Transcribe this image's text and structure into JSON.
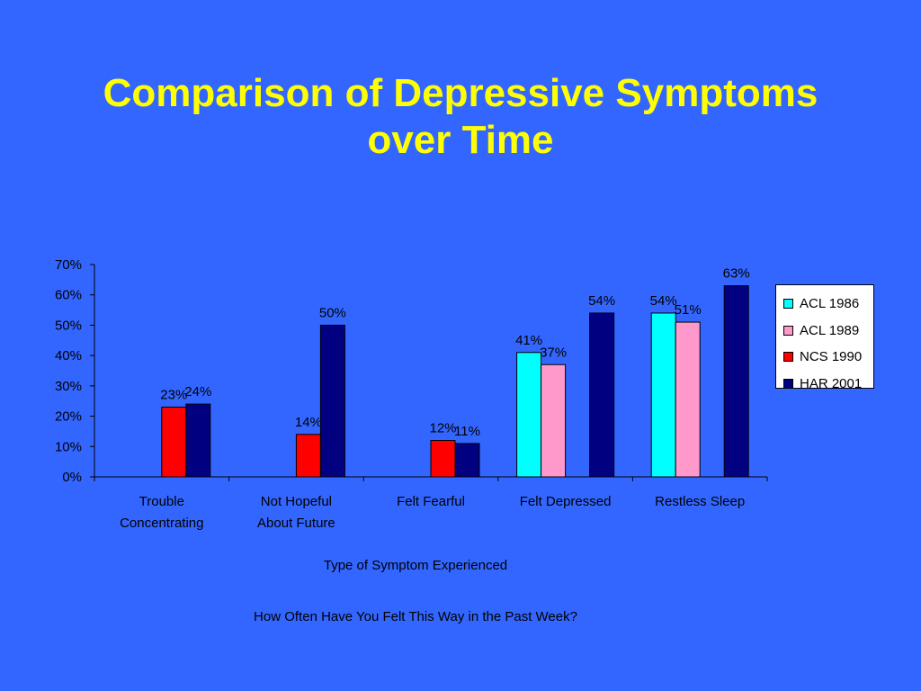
{
  "slide": {
    "title_line1": "Comparison of Depressive Symptoms",
    "title_line2": "over Time"
  },
  "chart_data": {
    "type": "bar",
    "categories": [
      [
        "Trouble",
        "Concentrating"
      ],
      [
        "Not Hopeful",
        "About Future"
      ],
      [
        "Felt Fearful"
      ],
      [
        "Felt Depressed"
      ],
      [
        "Restless Sleep"
      ]
    ],
    "series": [
      {
        "name": "ACL 1986",
        "color": "#00ffff",
        "values": [
          null,
          null,
          null,
          41,
          54
        ]
      },
      {
        "name": "ACL 1989",
        "color": "#ff99cc",
        "values": [
          null,
          null,
          null,
          37,
          51
        ]
      },
      {
        "name": "NCS 1990",
        "color": "#ff0000",
        "values": [
          23,
          14,
          12,
          null,
          null
        ]
      },
      {
        "name": "HAR 2001",
        "color": "#000080",
        "values": [
          24,
          50,
          11,
          54,
          63
        ]
      }
    ],
    "ylim": [
      0,
      70
    ],
    "yticks": [
      "0%",
      "10%",
      "20%",
      "30%",
      "40%",
      "50%",
      "60%",
      "70%"
    ],
    "value_suffix": "%",
    "xlabel": "Type of Symptom Experienced",
    "footnote": "How Often Have You Felt This Way in the Past Week?",
    "legend_position": "right",
    "grid": false
  }
}
